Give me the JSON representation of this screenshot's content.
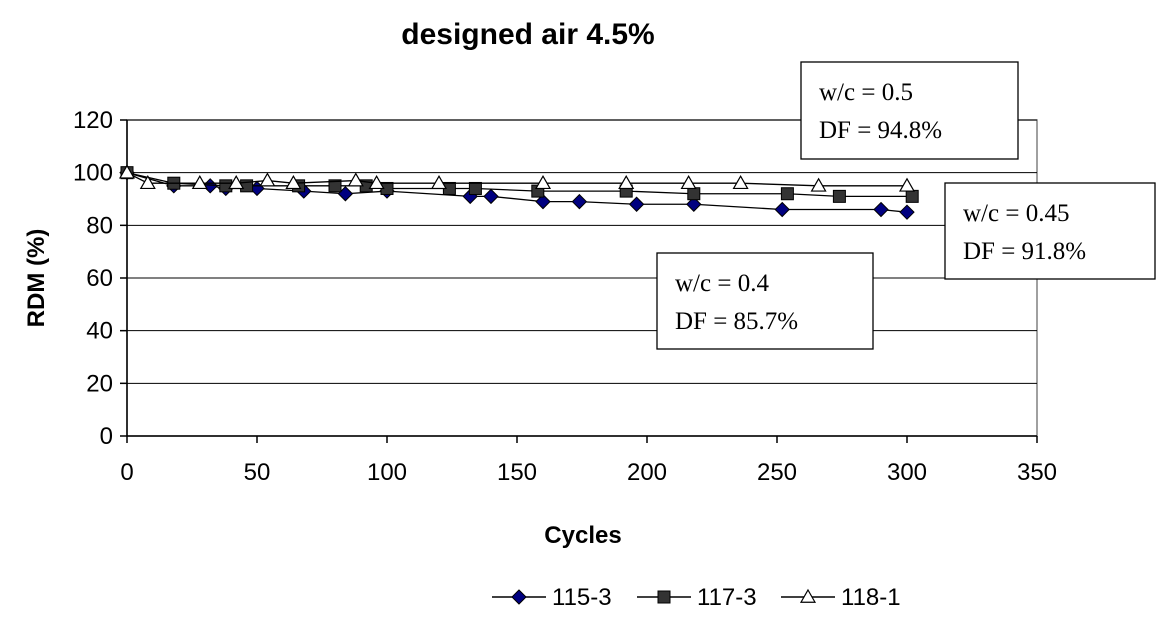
{
  "chart_data": {
    "type": "line",
    "title": "designed air 4.5%",
    "xlabel": "Cycles",
    "ylabel": "RDM (%)",
    "xlim": [
      0,
      350
    ],
    "ylim": [
      0,
      120
    ],
    "xticks": [
      0,
      50,
      100,
      150,
      200,
      250,
      300,
      350
    ],
    "yticks": [
      0,
      20,
      40,
      60,
      80,
      100,
      120
    ],
    "grid": "horizontal",
    "legend_position": "bottom",
    "series": [
      {
        "name": "115-3",
        "marker": "diamond",
        "color": "#000080",
        "x": [
          0,
          18,
          32,
          38,
          50,
          68,
          84,
          100,
          132,
          140,
          160,
          174,
          196,
          218,
          252,
          290,
          300
        ],
        "y": [
          100,
          95,
          95,
          94,
          94,
          93,
          92,
          93,
          91,
          91,
          89,
          89,
          88,
          88,
          86,
          86,
          85
        ]
      },
      {
        "name": "117-3",
        "marker": "square",
        "color": "#333333",
        "x": [
          0,
          18,
          38,
          46,
          66,
          80,
          92,
          100,
          124,
          134,
          158,
          192,
          218,
          254,
          274,
          302
        ],
        "y": [
          100,
          96,
          95,
          95,
          95,
          95,
          95,
          94,
          94,
          94,
          93,
          93,
          92,
          92,
          91,
          91
        ]
      },
      {
        "name": "118-1",
        "marker": "triangle-open",
        "color": "#333333",
        "x": [
          0,
          8,
          28,
          42,
          54,
          64,
          88,
          96,
          120,
          160,
          192,
          216,
          236,
          266,
          300
        ],
        "y": [
          100,
          96,
          96,
          96,
          97,
          96,
          97,
          96,
          96,
          96,
          96,
          96,
          96,
          95,
          95
        ]
      }
    ],
    "annotations": [
      {
        "line1": "w/c = 0.5",
        "line2": "DF = 94.8%"
      },
      {
        "line1": "w/c = 0.45",
        "line2": "DF = 91.8%"
      },
      {
        "line1": "w/c = 0.4",
        "line2": "DF = 85.7%"
      }
    ]
  }
}
